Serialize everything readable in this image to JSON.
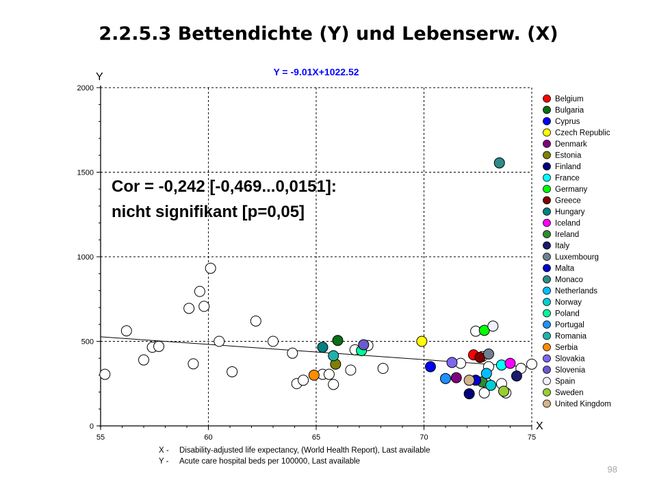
{
  "slide": {
    "title": "2.2.5.3 Bettendichte (Y) und Lebenserw. (X)",
    "page_number": "98"
  },
  "chart_data": {
    "type": "scatter",
    "equation": "Y = -9.01X+1022.52",
    "correlation_line1": "Cor = -0,242 [-0,469...0,0151]:",
    "correlation_line2": "nicht signifikant [p=0,05]",
    "y_axis_letter": "Y",
    "x_axis_letter": "X",
    "xlim": [
      55,
      75
    ],
    "ylim": [
      0,
      2000
    ],
    "xticks": [
      "55",
      "60",
      "65",
      "70",
      "75"
    ],
    "yticks": [
      "0",
      "500",
      "1000",
      "1500",
      "2000"
    ],
    "x_description_prefix": "X -",
    "x_description": "Disability-adjusted life expectancy, (World Health Report), Last available",
    "y_description_prefix": "Y -",
    "y_description": "Acute care hospital beds per 100000, Last available",
    "grid": true,
    "legend_position": "right",
    "regression": {
      "slope": -9.01,
      "intercept": 1022.52
    },
    "background_color": "#ffffff",
    "legend": [
      {
        "name": "Belgium",
        "color": "#ff0000"
      },
      {
        "name": "Bulgaria",
        "color": "#0a6e14"
      },
      {
        "name": "Cyprus",
        "color": "#0000ff"
      },
      {
        "name": "Czech Republic",
        "color": "#ffff00"
      },
      {
        "name": "Denmark",
        "color": "#800080"
      },
      {
        "name": "Estonia",
        "color": "#808000"
      },
      {
        "name": "Finland",
        "color": "#00007a"
      },
      {
        "name": "France",
        "color": "#00ffff"
      },
      {
        "name": "Germany",
        "color": "#00ff00"
      },
      {
        "name": "Greece",
        "color": "#800000"
      },
      {
        "name": "Hungary",
        "color": "#008080"
      },
      {
        "name": "Iceland",
        "color": "#ff00ff"
      },
      {
        "name": "Ireland",
        "color": "#2e8b2e"
      },
      {
        "name": "Italy",
        "color": "#1a1a6e"
      },
      {
        "name": "Luxembourg",
        "color": "#708090"
      },
      {
        "name": "Malta",
        "color": "#0000cd"
      },
      {
        "name": "Monaco",
        "color": "#2e8b8b"
      },
      {
        "name": "Netherlands",
        "color": "#00bfff"
      },
      {
        "name": "Norway",
        "color": "#00ced1"
      },
      {
        "name": "Poland",
        "color": "#00fa9a"
      },
      {
        "name": "Portugal",
        "color": "#1e90ff"
      },
      {
        "name": "Romania",
        "color": "#20b2aa"
      },
      {
        "name": "Serbia",
        "color": "#ff8c00"
      },
      {
        "name": "Slovakia",
        "color": "#7b68ee"
      },
      {
        "name": "Slovenia",
        "color": "#6a5acd"
      },
      {
        "name": "Spain",
        "color": "#f0f0ff"
      },
      {
        "name": "Sweden",
        "color": "#9acd32"
      },
      {
        "name": "United Kingdom",
        "color": "#d2b48c"
      }
    ],
    "unlabeled_point_color": "#ffffff",
    "unlabeled_points": [
      [
        55.2,
        305
      ],
      [
        56.2,
        562
      ],
      [
        57.0,
        390
      ],
      [
        57.4,
        465
      ],
      [
        57.7,
        470
      ],
      [
        59.1,
        695
      ],
      [
        59.3,
        367
      ],
      [
        59.6,
        795
      ],
      [
        59.8,
        707
      ],
      [
        60.1,
        932
      ],
      [
        60.5,
        500
      ],
      [
        61.1,
        320
      ],
      [
        62.2,
        620
      ],
      [
        63.0,
        500
      ],
      [
        63.9,
        430
      ],
      [
        64.1,
        250
      ],
      [
        64.4,
        270
      ],
      [
        65.3,
        305
      ],
      [
        65.6,
        305
      ],
      [
        65.8,
        245
      ],
      [
        66.6,
        330
      ],
      [
        66.8,
        450
      ],
      [
        67.4,
        475
      ],
      [
        68.1,
        340
      ],
      [
        71.7,
        370
      ],
      [
        72.4,
        560
      ],
      [
        72.7,
        410
      ],
      [
        72.8,
        195
      ],
      [
        72.9,
        255
      ],
      [
        73.0,
        350
      ],
      [
        73.6,
        250
      ],
      [
        73.8,
        195
      ],
      [
        74.5,
        340
      ],
      [
        75.0,
        365
      ]
    ],
    "series": [
      {
        "name": "Belgium",
        "points": [
          [
            72.3,
            420
          ]
        ]
      },
      {
        "name": "Bulgaria",
        "points": [
          [
            66.0,
            505
          ]
        ]
      },
      {
        "name": "Cyprus",
        "points": [
          [
            70.3,
            350
          ]
        ]
      },
      {
        "name": "Czech Republic",
        "points": [
          [
            69.9,
            500
          ]
        ]
      },
      {
        "name": "Denmark",
        "points": [
          [
            71.5,
            285
          ]
        ]
      },
      {
        "name": "Estonia",
        "points": [
          [
            65.9,
            365
          ]
        ]
      },
      {
        "name": "Finland",
        "points": [
          [
            72.1,
            190
          ]
        ]
      },
      {
        "name": "France",
        "points": [
          [
            73.6,
            360
          ]
        ]
      },
      {
        "name": "Germany",
        "points": [
          [
            72.8,
            565
          ]
        ]
      },
      {
        "name": "Greece",
        "points": [
          [
            72.6,
            405
          ]
        ]
      },
      {
        "name": "Hungary",
        "points": [
          [
            65.3,
            465
          ]
        ]
      },
      {
        "name": "Iceland",
        "points": [
          [
            74.0,
            370
          ]
        ]
      },
      {
        "name": "Ireland",
        "points": [
          [
            72.7,
            260
          ]
        ]
      },
      {
        "name": "Italy",
        "points": [
          [
            74.3,
            295
          ]
        ]
      },
      {
        "name": "Luxembourg",
        "points": [
          [
            73.0,
            425
          ]
        ]
      },
      {
        "name": "Malta",
        "points": [
          [
            72.4,
            270
          ]
        ]
      },
      {
        "name": "Monaco",
        "points": [
          [
            73.5,
            1555
          ]
        ]
      },
      {
        "name": "Netherlands",
        "points": [
          [
            72.9,
            310
          ]
        ]
      },
      {
        "name": "Norway",
        "points": [
          [
            73.1,
            240
          ]
        ]
      },
      {
        "name": "Poland",
        "points": [
          [
            67.1,
            445
          ]
        ]
      },
      {
        "name": "Portugal",
        "points": [
          [
            71.0,
            280
          ]
        ]
      },
      {
        "name": "Romania",
        "points": [
          [
            65.8,
            415
          ]
        ]
      },
      {
        "name": "Serbia",
        "points": [
          [
            64.9,
            300
          ]
        ]
      },
      {
        "name": "Slovakia",
        "points": [
          [
            71.3,
            375
          ]
        ]
      },
      {
        "name": "Slovenia",
        "points": [
          [
            67.2,
            480
          ]
        ]
      },
      {
        "name": "Spain",
        "points": [
          [
            73.2,
            590
          ]
        ]
      },
      {
        "name": "Sweden",
        "points": [
          [
            73.7,
            205
          ]
        ]
      },
      {
        "name": "United Kingdom",
        "points": [
          [
            72.1,
            270
          ]
        ]
      }
    ]
  }
}
